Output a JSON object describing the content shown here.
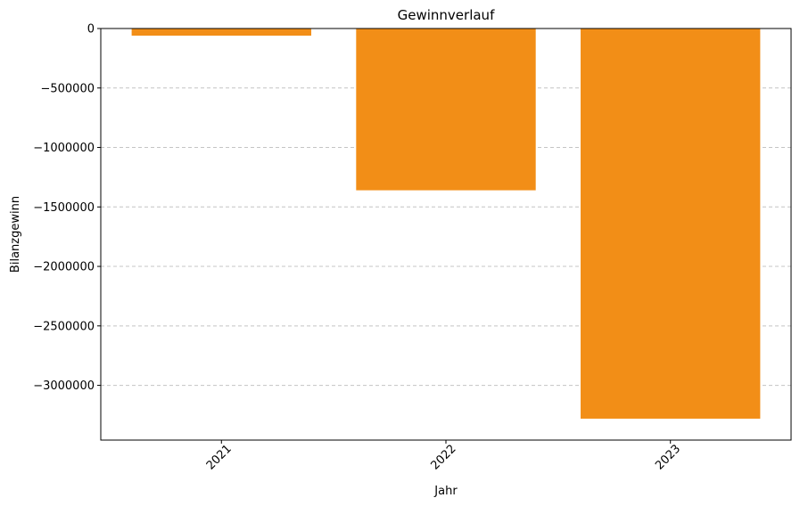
{
  "chart_data": {
    "type": "bar",
    "title": "Gewinnverlauf",
    "xlabel": "Jahr",
    "ylabel": "Bilanzgewinn",
    "categories": [
      "2021",
      "2022",
      "2023"
    ],
    "values": [
      -60000,
      -1360000,
      -3280000
    ],
    "ylim": [
      -3460000,
      0
    ],
    "yticks": [
      0,
      -500000,
      -1000000,
      -1500000,
      -2000000,
      -2500000,
      -3000000
    ],
    "ytick_labels": [
      "0",
      "−500000",
      "−1000000",
      "−1500000",
      "−2000000",
      "−2500000",
      "−3000000"
    ],
    "bar_color": "#f28e17",
    "grid": "y-dashed",
    "x_tick_rotation": 45
  }
}
